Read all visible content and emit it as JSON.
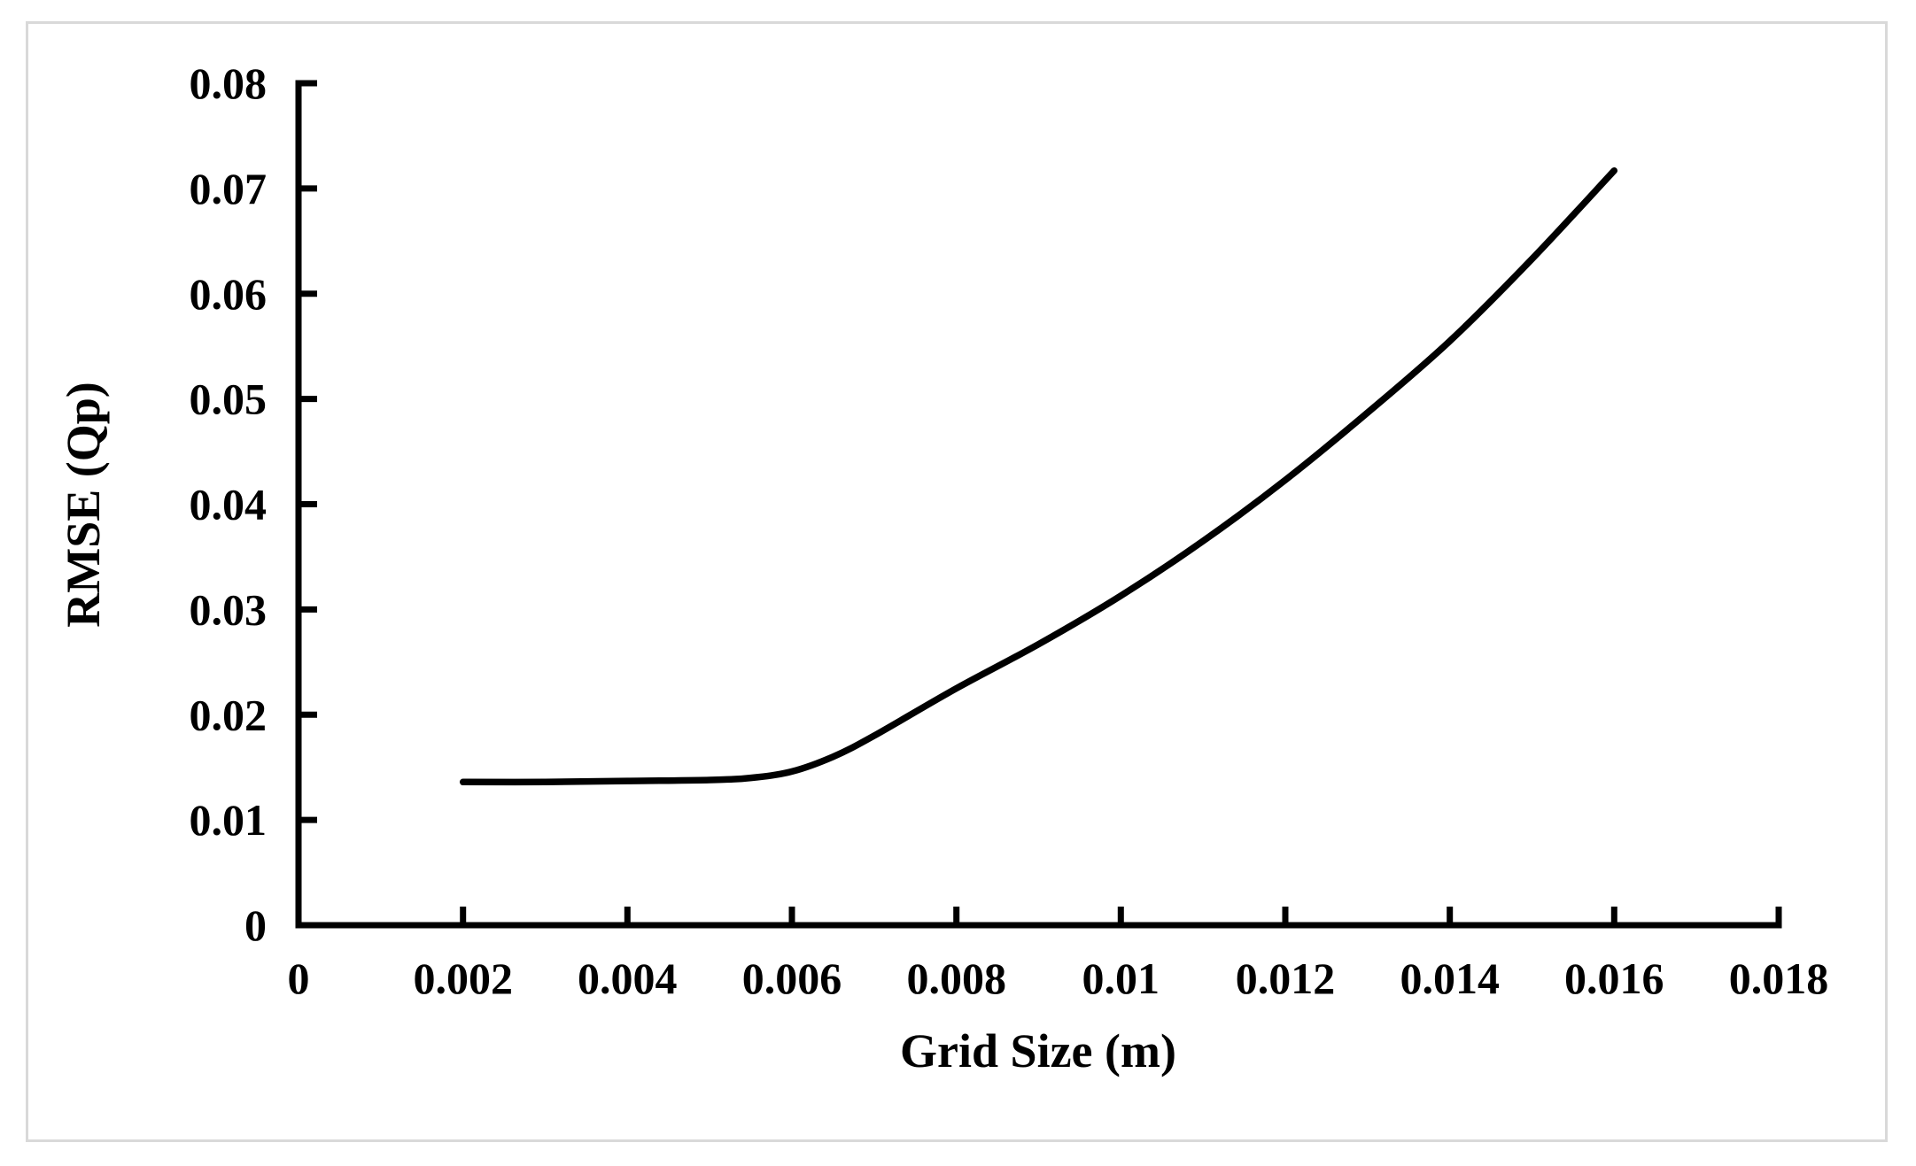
{
  "figure": {
    "background_color": "#ffffff",
    "frame_border_color": "#d9d9d9",
    "axis_color": "#000000",
    "text_color": "#000000"
  },
  "chart_data": {
    "type": "line",
    "title": "",
    "xlabel": "Grid Size (m)",
    "ylabel": "RMSE (Qp)",
    "xlim": [
      0,
      0.018
    ],
    "ylim": [
      0,
      0.08
    ],
    "x_ticks": [
      0,
      0.002,
      0.004,
      0.006,
      0.008,
      0.01,
      0.012,
      0.014,
      0.016,
      0.018
    ],
    "x_tick_labels": [
      "0",
      "0.002",
      "0.004",
      "0.006",
      "0.008",
      "0.01",
      "0.012",
      "0.014",
      "0.016",
      "0.018"
    ],
    "y_ticks": [
      0,
      0.01,
      0.02,
      0.03,
      0.04,
      0.05,
      0.06,
      0.07,
      0.08
    ],
    "y_tick_labels": [
      "0",
      "0.01",
      "0.02",
      "0.03",
      "0.04",
      "0.05",
      "0.06",
      "0.07",
      "0.08"
    ],
    "grid": false,
    "legend": false,
    "line_color": "#000000",
    "series": [
      {
        "x": [
          0.002,
          0.003,
          0.004,
          0.005,
          0.0055,
          0.006,
          0.0065,
          0.007,
          0.008,
          0.009,
          0.01,
          0.011,
          0.012,
          0.013,
          0.014,
          0.015,
          0.016
        ],
        "y": [
          0.0136,
          0.0136,
          0.0137,
          0.0138,
          0.014,
          0.0146,
          0.016,
          0.018,
          0.0225,
          0.0267,
          0.0313,
          0.0365,
          0.0423,
          0.0487,
          0.0555,
          0.0633,
          0.0717
        ]
      }
    ]
  }
}
